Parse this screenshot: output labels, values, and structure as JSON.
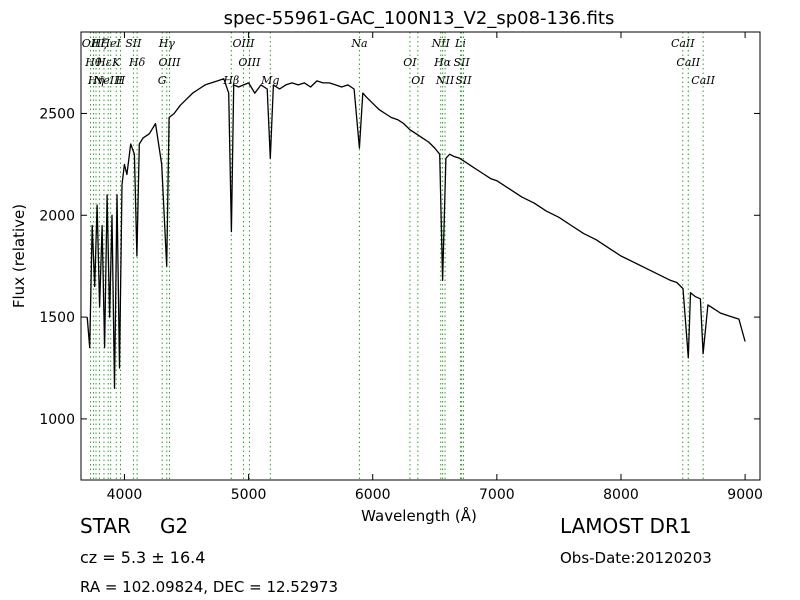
{
  "chart_data": {
    "type": "line",
    "title": "spec-55961-GAC_100N13_V2_sp08-136.fits",
    "xlabel": "Wavelength (Å)",
    "ylabel": "Flux (relative)",
    "xlim": [
      3650,
      9120
    ],
    "ylim": [
      700,
      2900
    ],
    "xticks": [
      4000,
      5000,
      6000,
      7000,
      8000,
      9000
    ],
    "yticks": [
      1000,
      1500,
      2000,
      2500
    ],
    "grid": false,
    "line_color": "#000000",
    "marker_color": "#2ca02c",
    "series": [
      {
        "x": [
          3700,
          3720,
          3740,
          3760,
          3780,
          3800,
          3820,
          3840,
          3860,
          3880,
          3900,
          3920,
          3940,
          3960,
          3980,
          4000,
          4020,
          4050,
          4080,
          4100,
          4120,
          4150,
          4200,
          4250,
          4300,
          4340,
          4360,
          4400,
          4450,
          4500,
          4550,
          4600,
          4650,
          4700,
          4750,
          4800,
          4840,
          4862,
          4880,
          4920,
          4960,
          5000,
          5050,
          5100,
          5150,
          5175,
          5200,
          5250,
          5300,
          5350,
          5400,
          5450,
          5500,
          5550,
          5600,
          5650,
          5700,
          5750,
          5800,
          5850,
          5893,
          5920,
          5950,
          6000,
          6050,
          6100,
          6150,
          6200,
          6250,
          6300,
          6350,
          6400,
          6450,
          6500,
          6540,
          6563,
          6590,
          6620,
          6650,
          6700,
          6750,
          6800,
          6850,
          6900,
          6950,
          7000,
          7100,
          7200,
          7300,
          7400,
          7500,
          7600,
          7700,
          7800,
          7900,
          8000,
          8100,
          8200,
          8300,
          8400,
          8450,
          8500,
          8542,
          8560,
          8600,
          8640,
          8662,
          8700,
          8750,
          8800,
          8850,
          8900,
          8950,
          9000
        ],
        "y": [
          1500,
          1350,
          1950,
          1650,
          2050,
          1550,
          1950,
          1350,
          2100,
          1500,
          2000,
          1150,
          2100,
          1250,
          2150,
          2250,
          2200,
          2350,
          2300,
          1800,
          2350,
          2380,
          2400,
          2450,
          2250,
          1750,
          2480,
          2500,
          2540,
          2570,
          2600,
          2620,
          2640,
          2650,
          2660,
          2670,
          2600,
          1920,
          2640,
          2630,
          2640,
          2650,
          2600,
          2640,
          2620,
          2280,
          2640,
          2620,
          2640,
          2650,
          2640,
          2650,
          2630,
          2660,
          2650,
          2650,
          2640,
          2630,
          2640,
          2620,
          2330,
          2600,
          2580,
          2550,
          2520,
          2500,
          2480,
          2470,
          2450,
          2420,
          2400,
          2380,
          2360,
          2330,
          2300,
          1680,
          2280,
          2300,
          2290,
          2280,
          2260,
          2240,
          2220,
          2200,
          2180,
          2170,
          2130,
          2090,
          2060,
          2020,
          1990,
          1950,
          1910,
          1880,
          1840,
          1800,
          1770,
          1740,
          1710,
          1680,
          1670,
          1640,
          1300,
          1620,
          1600,
          1590,
          1320,
          1560,
          1540,
          1520,
          1510,
          1500,
          1490,
          1380
        ]
      }
    ],
    "lines": [
      {
        "x": 3727,
        "labels": [
          "OII"
        ]
      },
      {
        "x": 3750,
        "labels": [
          "Hθ"
        ]
      },
      {
        "x": 3771,
        "labels": [
          "Hη"
        ]
      },
      {
        "x": 3798,
        "labels": [
          "Hζ"
        ]
      },
      {
        "x": 3835,
        "labels": [
          "Hε"
        ]
      },
      {
        "x": 3869,
        "labels": [
          "NeIII"
        ]
      },
      {
        "x": 3889,
        "labels": [
          "HeI"
        ]
      },
      {
        "x": 3934,
        "labels": [
          "K"
        ]
      },
      {
        "x": 3968,
        "labels": [
          "H"
        ]
      },
      {
        "x": 4072,
        "labels": [
          "SII"
        ]
      },
      {
        "x": 4102,
        "labels": [
          "Hδ"
        ]
      },
      {
        "x": 4304,
        "labels": [
          "G"
        ]
      },
      {
        "x": 4341,
        "labels": [
          "Hγ"
        ]
      },
      {
        "x": 4363,
        "labels": [
          "OIII"
        ]
      },
      {
        "x": 4861,
        "labels": [
          "Hβ"
        ]
      },
      {
        "x": 4959,
        "labels": [
          "OIII"
        ]
      },
      {
        "x": 5007,
        "labels": [
          "OIII"
        ]
      },
      {
        "x": 5175,
        "labels": [
          "Mg"
        ]
      },
      {
        "x": 5893,
        "labels": [
          "Na"
        ]
      },
      {
        "x": 6300,
        "labels": [
          "OI"
        ]
      },
      {
        "x": 6364,
        "labels": [
          "OI"
        ]
      },
      {
        "x": 6548,
        "labels": [
          "NII"
        ]
      },
      {
        "x": 6563,
        "labels": [
          "Hα"
        ]
      },
      {
        "x": 6583,
        "labels": [
          "NII"
        ]
      },
      {
        "x": 6707,
        "labels": [
          "Li"
        ]
      },
      {
        "x": 6716,
        "labels": [
          "SII"
        ]
      },
      {
        "x": 6731,
        "labels": [
          "SII"
        ]
      },
      {
        "x": 8498,
        "labels": [
          "CaII"
        ]
      },
      {
        "x": 8542,
        "labels": [
          "CaII"
        ]
      },
      {
        "x": 8662,
        "labels": [
          "CaII"
        ]
      }
    ]
  },
  "info": {
    "object_class": "STAR",
    "subclass": "G2",
    "redshift": "cz = 5.3 ± 16.4",
    "coords": "RA = 102.09824, DEC = 12.52973",
    "survey": "LAMOST DR1",
    "obs_date": "Obs-Date:20120203"
  }
}
